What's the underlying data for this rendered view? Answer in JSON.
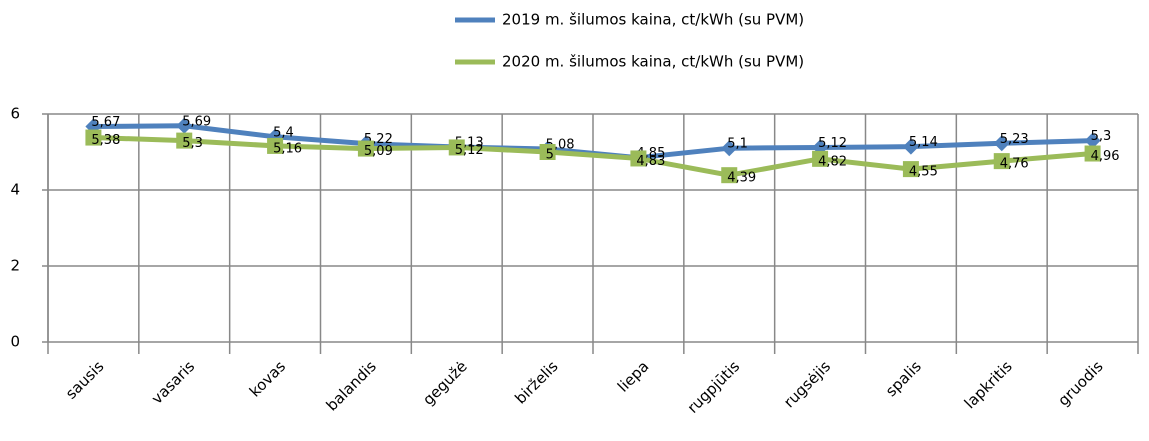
{
  "chart_data": {
    "type": "line",
    "categories": [
      "sausis",
      "vasaris",
      "kovas",
      "balandis",
      "gegužė",
      "birželis",
      "liepa",
      "rugpjūtis",
      "rugsėjis",
      "spalis",
      "lapkritis",
      "gruodis"
    ],
    "series": [
      {
        "name": "2019 m.  šilumos kaina, ct/kWh  (su PVM)",
        "color": "#4f81bd",
        "marker": "diamond",
        "values": [
          5.67,
          5.69,
          5.4,
          5.22,
          5.13,
          5.08,
          4.85,
          5.1,
          5.12,
          5.14,
          5.23,
          5.3
        ],
        "value_labels": [
          "5,67",
          "5,69",
          "5,4",
          "5,22",
          "5,13",
          "5,08",
          "4,85",
          "5,1",
          "5,12",
          "5,14",
          "5,23",
          "5,3"
        ]
      },
      {
        "name": "2020 m.  šilumos kaina, ct/kWh  (su PVM)",
        "color": "#9bbb59",
        "marker": "square",
        "values": [
          5.38,
          5.3,
          5.16,
          5.09,
          5.12,
          5.0,
          4.83,
          4.39,
          4.82,
          4.55,
          4.76,
          4.96
        ],
        "value_labels": [
          "5,38",
          "5,3",
          "5,16",
          "5,09",
          "5,12",
          "5",
          "4,83",
          "4,39",
          "4,82",
          "4,55",
          "4,76",
          "4,96"
        ]
      }
    ],
    "ylim": [
      0,
      6
    ],
    "yticks": [
      0,
      2,
      4,
      6
    ],
    "grid": true,
    "legend": "top"
  }
}
